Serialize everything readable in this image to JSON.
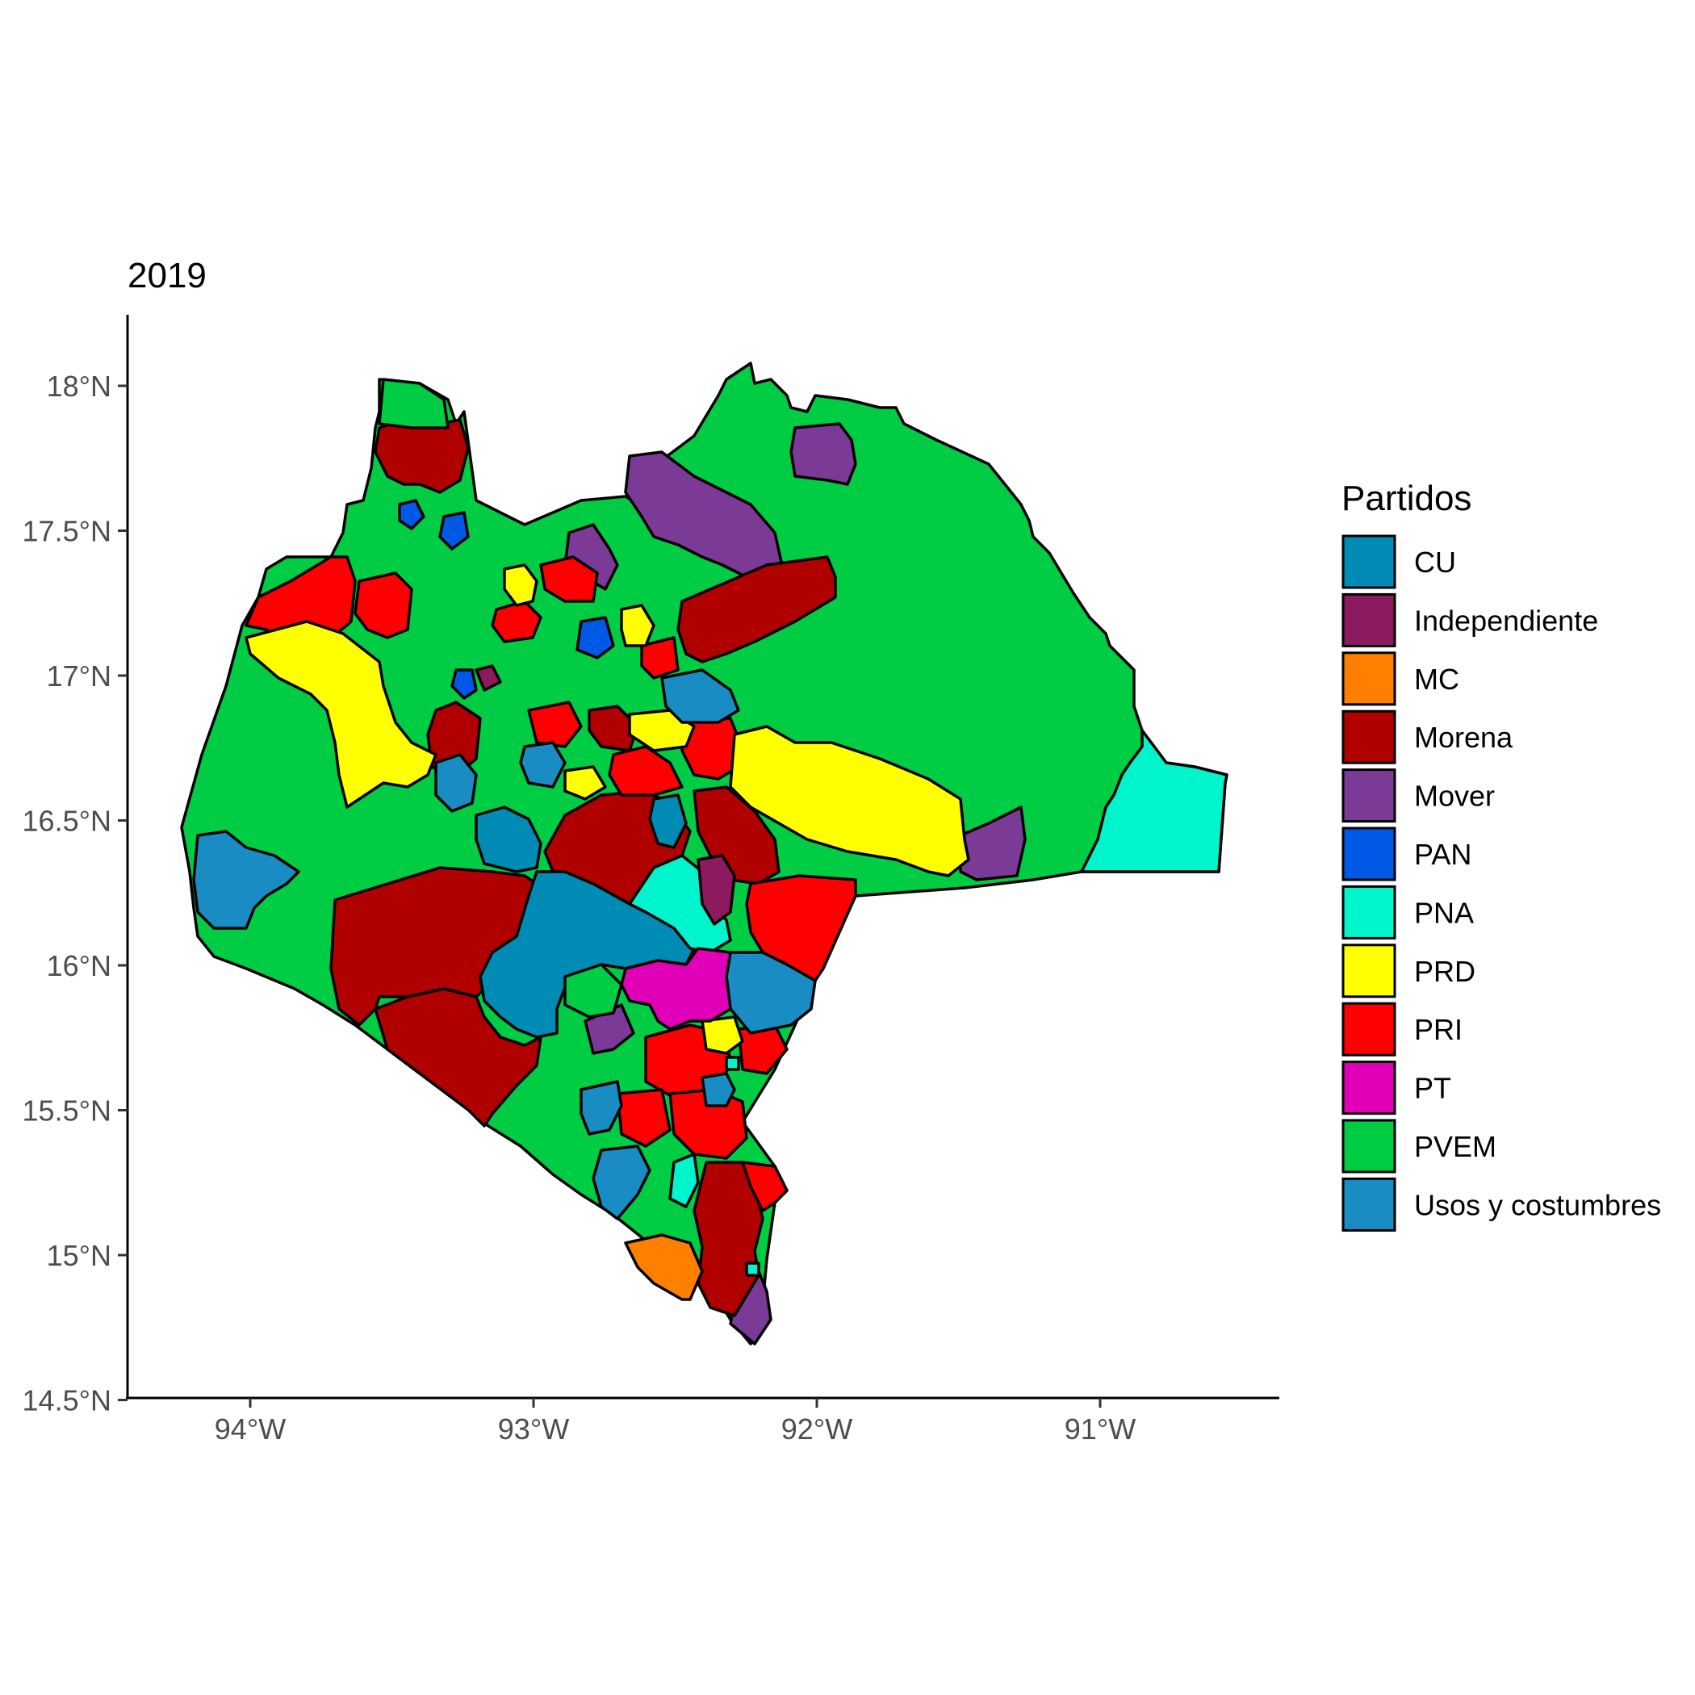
{
  "title": "2019",
  "map": {
    "y_ticks": [
      {
        "label": "18°N",
        "lat": 18.0
      },
      {
        "label": "17.5°N",
        "lat": 17.5
      },
      {
        "label": "17°N",
        "lat": 17.0
      },
      {
        "label": "16.5°N",
        "lat": 16.5
      },
      {
        "label": "16°N",
        "lat": 16.0
      },
      {
        "label": "15.5°N",
        "lat": 15.5
      },
      {
        "label": "15°N",
        "lat": 15.0
      },
      {
        "label": "14.5°N",
        "lat": 14.5
      }
    ],
    "x_ticks": [
      {
        "label": "94°W",
        "lon": -94.0
      },
      {
        "label": "93°W",
        "lon": -93.0
      },
      {
        "label": "92°W",
        "lon": -92.0
      },
      {
        "label": "91°W",
        "lon": -91.0
      }
    ]
  },
  "legend": {
    "title": "Partidos",
    "items": [
      {
        "label": "CU",
        "color": "#008bb5"
      },
      {
        "label": "Independiente",
        "color": "#8b1a5e"
      },
      {
        "label": "MC",
        "color": "#ff8000"
      },
      {
        "label": "Morena",
        "color": "#b00000"
      },
      {
        "label": "Mover",
        "color": "#7b3a96"
      },
      {
        "label": "PAN",
        "color": "#0059e6"
      },
      {
        "label": "PNA",
        "color": "#00f5cc"
      },
      {
        "label": "PRD",
        "color": "#ffff00"
      },
      {
        "label": "PRI",
        "color": "#ff0000"
      },
      {
        "label": "PT",
        "color": "#e000b8"
      },
      {
        "label": "PVEM",
        "color": "#00cc44"
      },
      {
        "label": "Usos y costumbres",
        "color": "#1a8cc4"
      }
    ]
  }
}
